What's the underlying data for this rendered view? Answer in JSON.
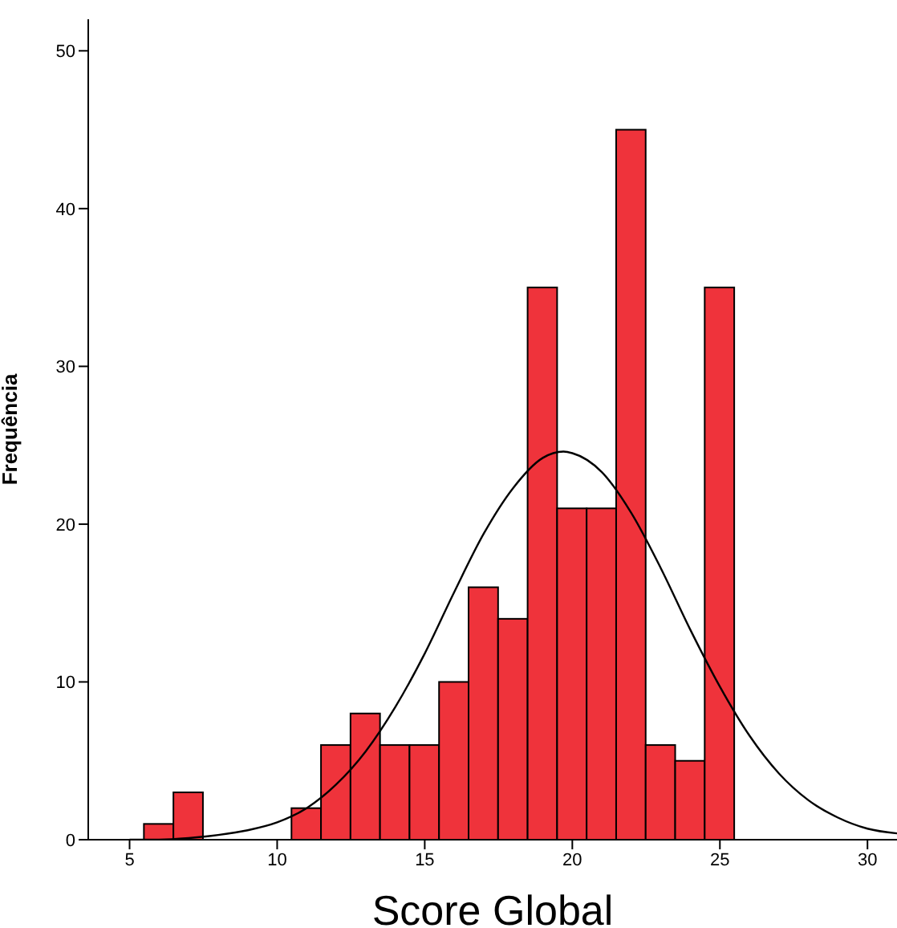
{
  "chart_data": {
    "type": "histogram",
    "xlabel": "Score Global",
    "ylabel": "Frequência",
    "bins": [
      5.5,
      6.5,
      7.5,
      8.5,
      9.5,
      10.5,
      11.5,
      12.5,
      13.5,
      14.5,
      15.5,
      16.5,
      17.5,
      18.5,
      19.5,
      20.5,
      21.5,
      22.5,
      23.5,
      24.5,
      25.5
    ],
    "values": [
      1,
      3,
      0,
      0,
      0,
      2,
      6,
      8,
      6,
      6,
      10,
      16,
      14,
      35,
      21,
      21,
      45,
      6,
      5,
      35
    ],
    "color": "#ef333b",
    "series": [
      {
        "type": "line",
        "color": "#000000",
        "x": [
          5,
          6,
          7,
          8,
          9,
          10,
          11,
          12,
          13,
          14,
          15,
          16,
          17,
          18,
          19,
          19.7,
          20,
          21,
          22,
          23,
          24,
          25,
          26,
          27,
          28,
          29,
          30,
          31
        ],
        "values": [
          0,
          0,
          0.1,
          0.3,
          0.6,
          1.1,
          2.0,
          3.5,
          5.6,
          8.4,
          11.8,
          15.7,
          19.4,
          22.3,
          24.2,
          24.6,
          24.5,
          23.3,
          20.7,
          17.2,
          13.3,
          9.7,
          6.6,
          4.2,
          2.5,
          1.4,
          0.7,
          0.4
        ]
      }
    ],
    "xlim": [
      3.6,
      31
    ],
    "xticks": [
      5,
      10,
      15,
      20,
      25,
      30
    ],
    "ylim": [
      0,
      52
    ],
    "yticks": [
      0,
      10,
      20,
      30,
      40,
      50
    ],
    "marker": "none",
    "line_style": "solid"
  }
}
